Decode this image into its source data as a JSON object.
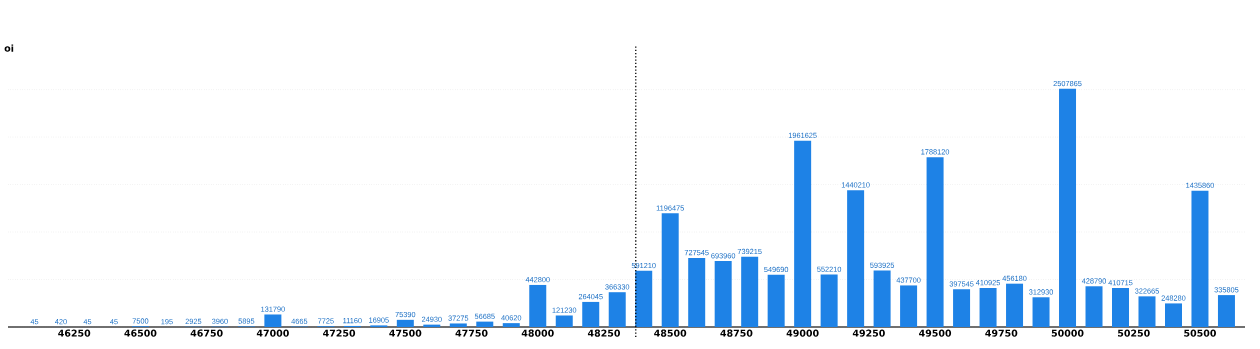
{
  "chart_data": {
    "type": "bar",
    "ylabel": "oi",
    "x": [
      46100,
      46200,
      46300,
      46400,
      46500,
      46600,
      46700,
      46800,
      46900,
      47000,
      47100,
      47200,
      47300,
      47400,
      47500,
      47600,
      47700,
      47800,
      47900,
      48000,
      48100,
      48200,
      48300,
      48400,
      48500,
      48600,
      48700,
      48800,
      48900,
      49000,
      49100,
      49200,
      49300,
      49400,
      49500,
      49600,
      49700,
      49800,
      49900,
      50000,
      50100,
      50200,
      50300,
      50400,
      50500,
      50600
    ],
    "values": [
      45,
      420,
      45,
      45,
      7500,
      195,
      2925,
      3960,
      5895,
      131790,
      4665,
      7725,
      11160,
      16905,
      75390,
      24930,
      37275,
      56685,
      40620,
      442800,
      121230,
      264045,
      366330,
      591210,
      1196475,
      727545,
      693960,
      739215,
      549690,
      1961625,
      552210,
      1440210,
      593925,
      437700,
      1788120,
      397545,
      410925,
      456180,
      312930,
      2507865,
      428790,
      410715,
      322665,
      248280,
      1435860,
      335805
    ],
    "color": "#1e82e6",
    "data_labels": true,
    "xlim": [
      46000,
      50670
    ],
    "xticks": [
      46250,
      46500,
      46750,
      47000,
      47250,
      47500,
      47750,
      48000,
      48250,
      48500,
      48750,
      49000,
      49250,
      49500,
      49750,
      50000,
      50250,
      50500
    ],
    "grid": "y",
    "tick_labels": "x",
    "ref_lines": [
      {
        "axis": "x",
        "value": 48370,
        "color": "#000000",
        "line_style": "dotted"
      }
    ]
  }
}
